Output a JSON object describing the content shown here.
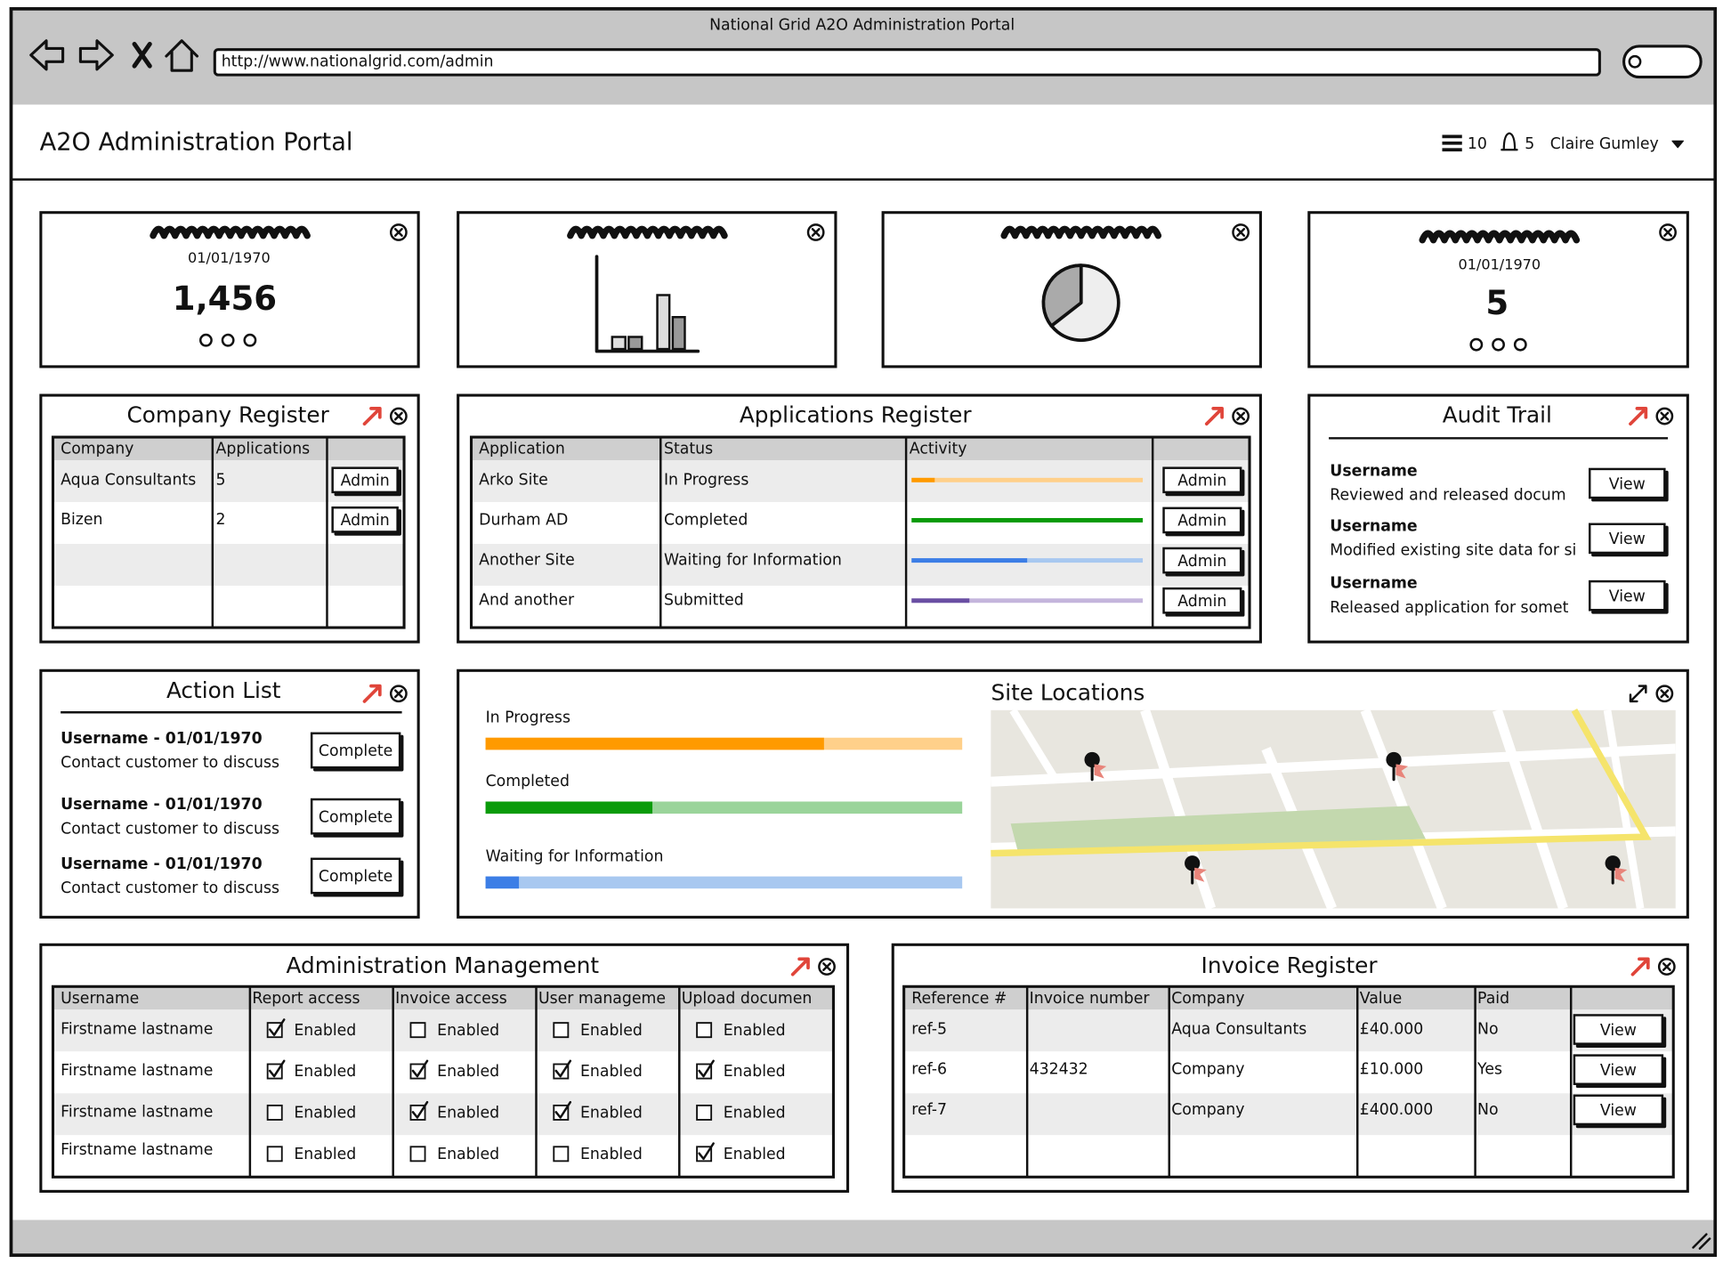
{
  "browser": {
    "title": "National Grid A2O Administration Portal",
    "url": "http://www.nationalgrid.com/admin"
  },
  "header": {
    "title": "A2O Administration Portal",
    "list_count": "10",
    "notifications": "5",
    "user": "Claire Gumley"
  },
  "kpis": [
    {
      "date": "01/01/1970",
      "value": "1,456"
    },
    {
      "date": "01/01/1970",
      "value": "5"
    }
  ],
  "company_register": {
    "title": "Company Register",
    "columns": [
      "Company",
      "Applications"
    ],
    "rows": [
      {
        "company": "Aqua Consultants",
        "applications": "5",
        "action": "Admin"
      },
      {
        "company": "Bizen",
        "applications": "2",
        "action": "Admin"
      }
    ]
  },
  "applications_register": {
    "title": "Applications Register",
    "columns": [
      "Application",
      "Status",
      "Activity"
    ],
    "rows": [
      {
        "application": "Arko Site",
        "status": "In Progress",
        "activity": 10,
        "color": "#ff9a00",
        "track": "#ffd08a",
        "action": "Admin"
      },
      {
        "application": "Durham AD",
        "status": "Completed",
        "activity": 100,
        "color": "#0a9b0a",
        "track": "#a6dca6",
        "action": "Admin"
      },
      {
        "application": "Another Site",
        "status": "Waiting for Information",
        "activity": 50,
        "color": "#3c7ee6",
        "track": "#a8c8f0",
        "action": "Admin"
      },
      {
        "application": "And another",
        "status": "Submitted",
        "activity": 25,
        "color": "#6a4fa3",
        "track": "#c4b5dc",
        "action": "Admin"
      }
    ]
  },
  "audit_trail": {
    "title": "Audit Trail",
    "items": [
      {
        "user": "Username",
        "text": "Reviewed and released docum",
        "action": "View"
      },
      {
        "user": "Username",
        "text": "Modified existing site data for si",
        "action": "View"
      },
      {
        "user": "Username",
        "text": "Released application for somet",
        "action": "View"
      }
    ]
  },
  "action_list": {
    "title": "Action List",
    "items": [
      {
        "title": "Username - 01/01/1970",
        "text": "Contact customer to discuss",
        "action": "Complete"
      },
      {
        "title": "Username - 01/01/1970",
        "text": "Contact customer to discuss",
        "action": "Complete"
      },
      {
        "title": "Username - 01/01/1970",
        "text": "Contact customer to discuss",
        "action": "Complete"
      }
    ]
  },
  "site_locations": {
    "title": "Site Locations",
    "progress": [
      {
        "label": "In Progress",
        "value": 71,
        "color": "#ff9a00",
        "track": "#ffd08a"
      },
      {
        "label": "Completed",
        "value": 35,
        "color": "#0a9b0a",
        "track": "#9ad49a"
      },
      {
        "label": "Waiting for Information",
        "value": 7,
        "color": "#3c7ee6",
        "track": "#a8c8f0"
      }
    ]
  },
  "administration_management": {
    "title": "Administration Management",
    "columns": [
      "Username",
      "Report access",
      "Invoice access",
      "User manageme",
      "Upload documen"
    ],
    "checkbox_label": "Enabled",
    "rows": [
      {
        "name": "Firstname lastname",
        "access": [
          true,
          false,
          false,
          false
        ]
      },
      {
        "name": "Firstname lastname",
        "access": [
          true,
          true,
          true,
          true
        ]
      },
      {
        "name": "Firstname lastname",
        "access": [
          false,
          true,
          true,
          false
        ]
      },
      {
        "name": "Firstname lastname",
        "access": [
          false,
          false,
          false,
          true
        ]
      }
    ]
  },
  "invoice_register": {
    "title": "Invoice Register",
    "columns": [
      "Reference #",
      "Invoice number",
      "Company",
      "Value",
      "Paid"
    ],
    "rows": [
      {
        "cells": [
          "ref-5",
          null,
          "Aqua Consultants",
          "£40.000",
          "No"
        ],
        "action": "View"
      },
      {
        "cells": [
          "ref-6",
          "432432",
          "Company",
          "£10.000",
          "Yes"
        ],
        "action": "View"
      },
      {
        "cells": [
          "ref-7",
          null,
          "Company",
          "£400.000",
          "No"
        ],
        "action": "View"
      }
    ]
  }
}
